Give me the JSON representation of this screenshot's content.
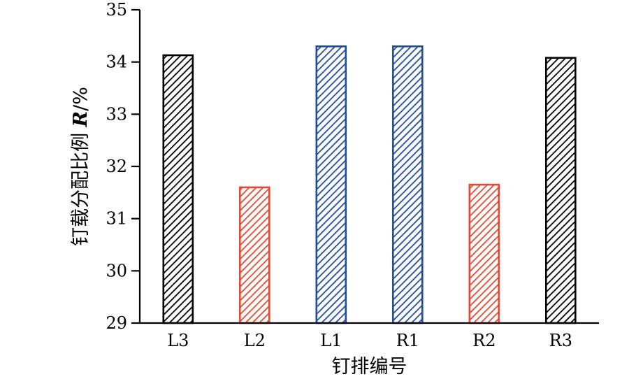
{
  "chart_data": {
    "type": "bar",
    "categories": [
      "L3",
      "L2",
      "L1",
      "R1",
      "R2",
      "R3"
    ],
    "values": [
      34.13,
      31.6,
      34.3,
      34.3,
      31.65,
      34.08
    ],
    "ylim": [
      29,
      35
    ],
    "yticks": [
      "29",
      "30",
      "31",
      "32",
      "33",
      "34",
      "35"
    ],
    "xlabel": "钉排编号",
    "ylabel": {
      "text": "钉载分配比例 ",
      "variable": "R",
      "unit": "/%"
    },
    "bar_colors": [
      "#000000",
      "#e34a33",
      "#1f4e9e",
      "#1f4e9e",
      "#e34a33",
      "#000000"
    ],
    "bar_fill": "diagonal-hatch",
    "grid": false,
    "legend": "none"
  }
}
